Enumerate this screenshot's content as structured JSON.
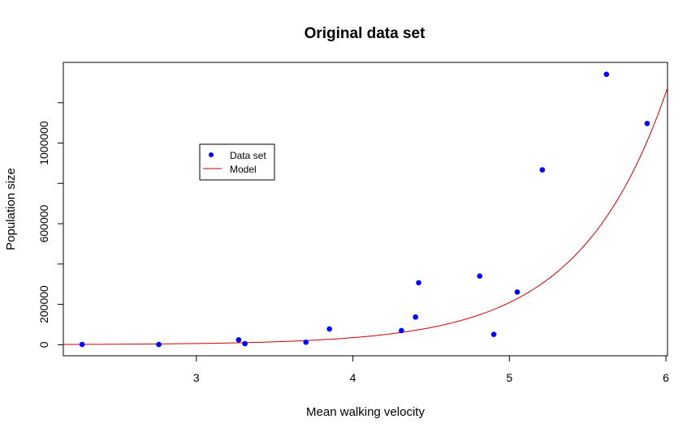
{
  "chart_data": {
    "type": "scatter",
    "title": "Original data set",
    "xlabel": "Mean walking velocity",
    "ylabel": "Population size",
    "xlim": [
      2.15,
      6.01
    ],
    "ylim": [
      -55000,
      1400000
    ],
    "x_ticks": [
      3,
      4,
      5,
      6
    ],
    "x_tick_labels": [
      "3",
      "4",
      "5",
      "6"
    ],
    "y_ticks": [
      0,
      200000,
      600000,
      1000000
    ],
    "y_tick_labels": [
      "0",
      "200000",
      "600000",
      "1000000"
    ],
    "y_minor_ticks": [
      400000,
      800000,
      1200000
    ],
    "grid": false,
    "legend_position": "upper-left",
    "series": [
      {
        "name": "Data set",
        "kind": "points",
        "color": "#0000ff",
        "points": [
          {
            "x": 2.27,
            "y": 1000
          },
          {
            "x": 2.76,
            "y": 1000
          },
          {
            "x": 3.27,
            "y": 24000
          },
          {
            "x": 3.31,
            "y": 5000
          },
          {
            "x": 3.7,
            "y": 12000
          },
          {
            "x": 3.85,
            "y": 78000
          },
          {
            "x": 4.31,
            "y": 70000
          },
          {
            "x": 4.4,
            "y": 137000
          },
          {
            "x": 4.42,
            "y": 307000
          },
          {
            "x": 4.81,
            "y": 340000
          },
          {
            "x": 4.9,
            "y": 51000
          },
          {
            "x": 5.05,
            "y": 261000
          },
          {
            "x": 5.21,
            "y": 867000
          },
          {
            "x": 5.62,
            "y": 1341000
          },
          {
            "x": 5.88,
            "y": 1097000
          }
        ]
      },
      {
        "name": "Model",
        "kind": "line",
        "color": "#cc0000",
        "model": {
          "form": "exponential",
          "a": 27.1,
          "b": 1.79
        },
        "x_range": [
          2.15,
          6.01
        ]
      }
    ]
  }
}
